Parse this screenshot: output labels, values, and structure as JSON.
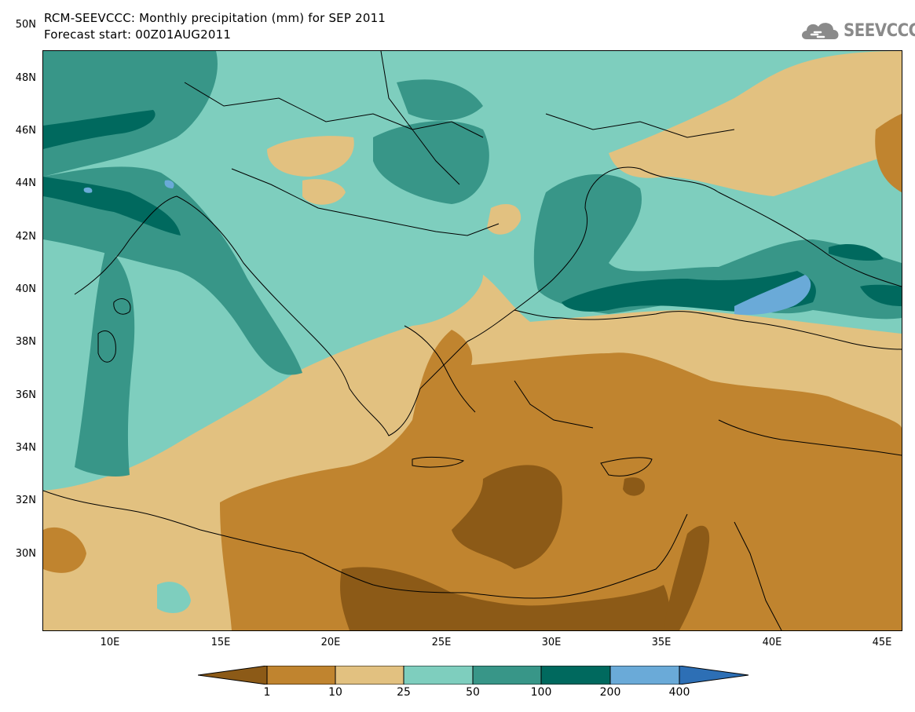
{
  "header": {
    "title": "RCM-SEEVCCC: Monthly precipitation (mm) for SEP 2011",
    "subtitle": "Forecast start: 00Z01AUG2011",
    "logo_text": "SEEVCCC"
  },
  "axes": {
    "lat_labels": [
      "50N",
      "48N",
      "46N",
      "44N",
      "42N",
      "40N",
      "38N",
      "36N",
      "34N",
      "32N",
      "30N"
    ],
    "lon_labels": [
      "10E",
      "15E",
      "20E",
      "25E",
      "30E",
      "35E",
      "40E",
      "45E"
    ]
  },
  "colorbar": {
    "levels": [
      "1",
      "10",
      "25",
      "50",
      "100",
      "200",
      "400"
    ],
    "colors": [
      "#8c5a17",
      "#c0842f",
      "#e2c180",
      "#7ecebe",
      "#389688",
      "#00695e",
      "#6aaad8",
      "#2d6fb5"
    ]
  }
}
